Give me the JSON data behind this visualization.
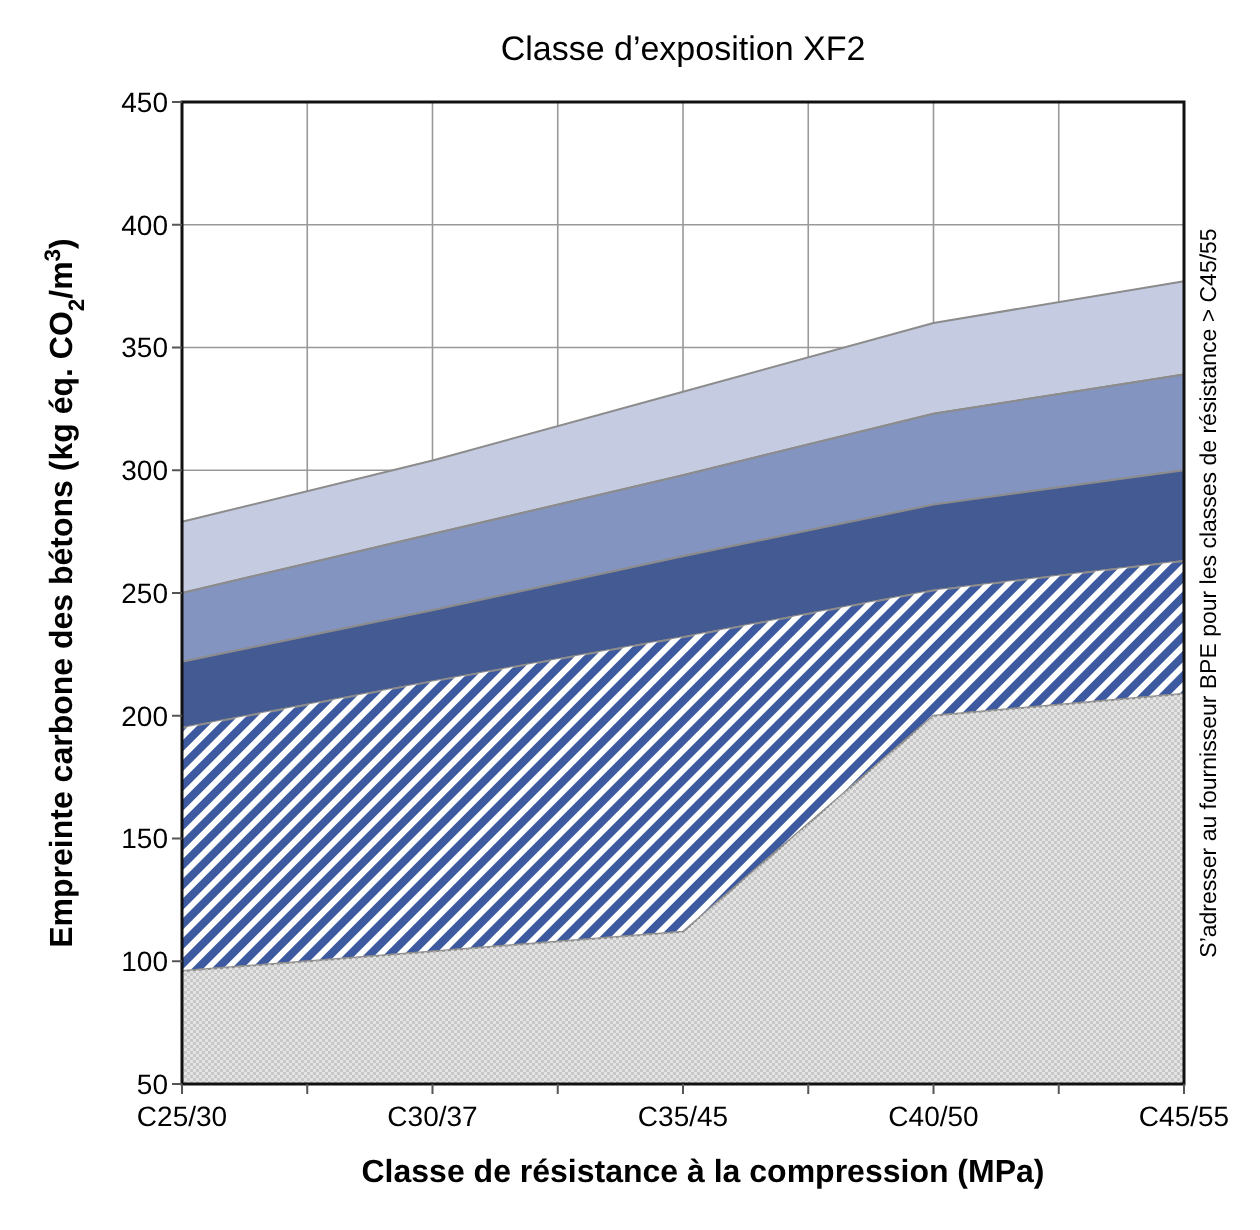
{
  "chart_data": {
    "type": "area",
    "title": "Classe d’exposition XF2",
    "xlabel": "Classe de résistance à la compression (MPa)",
    "ylabel": "Empreinte carbone des bétons (kg éq. CO$_{2}$/m$^{3}$)",
    "categories": [
      "C25/30",
      "C30/37",
      "C35/45",
      "C40/50",
      "C45/55"
    ],
    "series": [
      {
        "color": "#c8c8c8",
        "values": [
          96,
          104,
          112,
          200,
          209
        ]
      },
      {
        "color": "#3d5aa0",
        "values": [
          195,
          214,
          232,
          251,
          263
        ]
      },
      {
        "color": "#435a92",
        "values": [
          222,
          243,
          265,
          286,
          300
        ]
      },
      {
        "color": "#8494c0",
        "values": [
          250,
          274,
          298,
          323,
          339
        ]
      },
      {
        "color": "#c5cbe1",
        "values": [
          279,
          304,
          332,
          360,
          377
        ]
      }
    ],
    "ylim": [
      50,
      450
    ],
    "yticks": [
      50,
      100,
      150,
      200,
      250,
      300,
      350,
      400,
      450
    ],
    "grid": true,
    "annotations": [
      "S’adresser au fournisseur BPE pour les classes de résistance > C45/55"
    ]
  }
}
